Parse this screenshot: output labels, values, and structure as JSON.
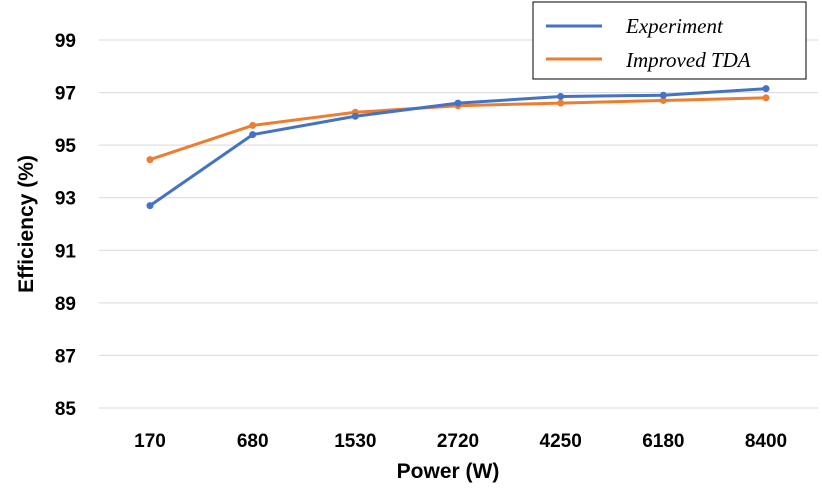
{
  "chart_data": {
    "type": "line",
    "categories": [
      "170",
      "680",
      "1530",
      "2720",
      "4250",
      "6180",
      "8400"
    ],
    "series": [
      {
        "name": "Experiment",
        "color": "#4472c4",
        "values": [
          92.7,
          95.4,
          96.1,
          96.6,
          96.85,
          96.9,
          97.15
        ]
      },
      {
        "name": "Improved TDA",
        "color": "#ed7d31",
        "values": [
          94.45,
          95.75,
          96.25,
          96.5,
          96.6,
          96.7,
          96.8
        ]
      }
    ],
    "title": "",
    "xlabel": "Power (W)",
    "ylabel": "Efficiency (%)",
    "ylim": [
      85,
      100
    ],
    "yticks": [
      85,
      87,
      89,
      91,
      93,
      95,
      97,
      99
    ],
    "grid": true,
    "legend": "top-right"
  }
}
